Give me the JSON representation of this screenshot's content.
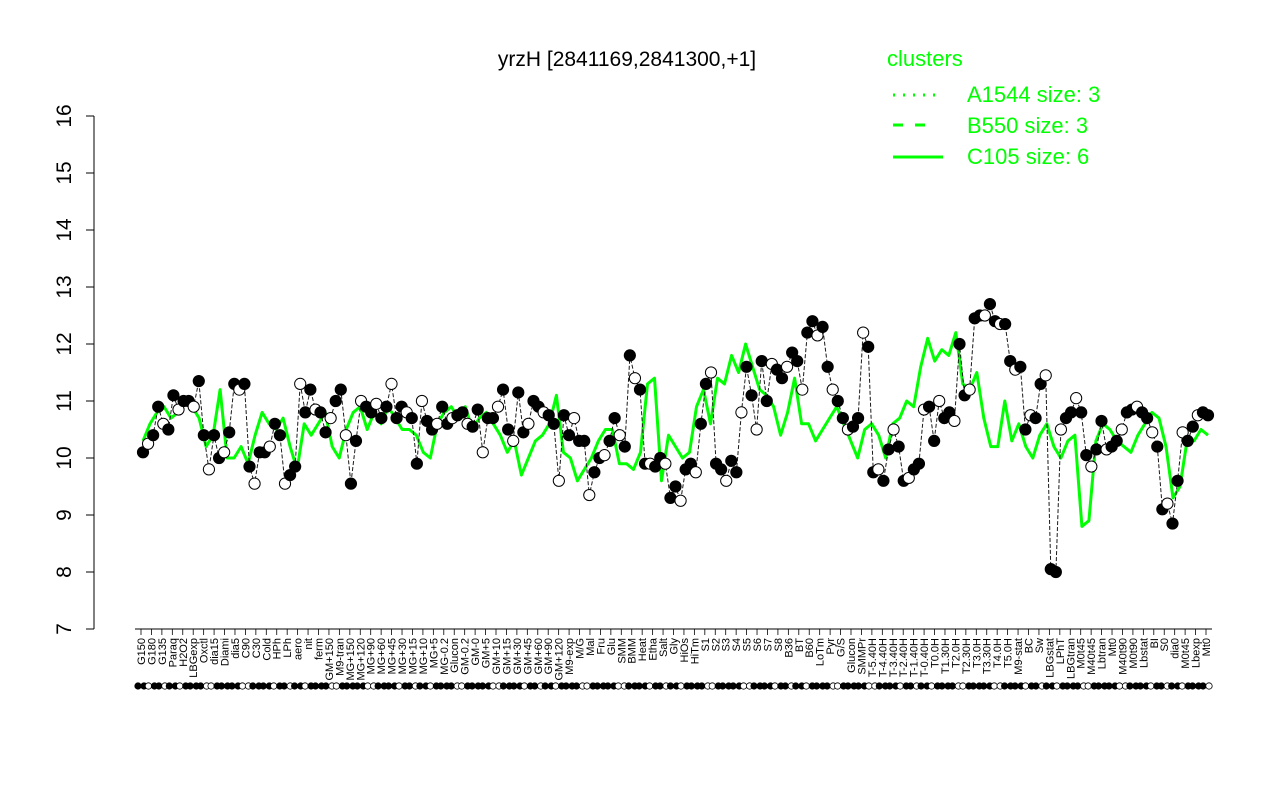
{
  "colors": {
    "cluster": "#00ff00",
    "marker_stroke": "#000000",
    "filled": "#000000",
    "open": "#ffffff",
    "line": "#1a1a1a"
  },
  "legend": {
    "title": "clusters",
    "items": [
      {
        "label": "A1544 size: 3",
        "style": "dotted"
      },
      {
        "label": "B550 size: 3",
        "style": "dashed"
      },
      {
        "label": "C105 size: 6",
        "style": "solid"
      }
    ]
  },
  "chart_data": {
    "type": "line",
    "title": "yrzH [2841169,2841300,+1]",
    "xlabel": "",
    "ylabel": "",
    "ylim": [
      7,
      16
    ],
    "yticks": [
      7,
      8,
      9,
      10,
      11,
      12,
      13,
      14,
      15,
      16
    ],
    "legend_position": "top-right",
    "grid": false,
    "x_labels_top": [
      "G150",
      "G180",
      "G135",
      "Paraq",
      "H2O2",
      "LBGexp",
      "Oxctl",
      "dia15",
      "Diami",
      "dia5",
      "C90",
      "C30",
      "Cold",
      "HPh",
      "LPh",
      "aero",
      "nit",
      "ferm",
      "GM+150",
      "M9-tran",
      "MG+150",
      "MG+120",
      "MG+90",
      "MG+60",
      "MG+45",
      "MG+30",
      "MG+15",
      "MG+10",
      "MG+5",
      "MG-0.2",
      "Glucon",
      "GM-0.2",
      "GM-0",
      "GM+5",
      "GM+10",
      "GM+15",
      "GM+30",
      "GM+45",
      "GM+60",
      "GM+90",
      "GM+120",
      "M9-exp",
      "M/G",
      "Mal",
      "Fru",
      "Glu",
      "SMM",
      "BMM",
      "Heat",
      "Etha",
      "Salt",
      "Gly",
      "HiOs",
      "HiTm",
      "S1",
      "S2",
      "S3",
      "S4",
      "S5",
      "S6",
      "S7",
      "S8",
      "B36",
      "BT",
      "B60",
      "LoTm",
      "Pyr",
      "G/S",
      "Glucon",
      "SMMPr",
      "T-5.40H",
      "T-4.40H",
      "T-3.40H",
      "T-2.40H",
      "T-1.40H",
      "T-0.40H",
      "T0.0H",
      "T1.30H",
      "T2.0H",
      "T2.30H",
      "T3.0H",
      "T3.30H",
      "T4.0H",
      "T5.0H",
      "M9-stat",
      "BC",
      "Sw",
      "LBGstat",
      "LPhT",
      "LBGtran",
      "M0t45",
      "M40t45",
      "Lbtran",
      "Mt0",
      "M40t90",
      "M0t90",
      "Lbstat",
      "BI",
      "S0",
      "dia0",
      "M0t45",
      "Lbexp",
      "Mt0"
    ],
    "series": [
      {
        "values": [
          10.1,
          10.25,
          10.4,
          10.9,
          10.6,
          10.5,
          11.1,
          10.85,
          11.0,
          11.0,
          10.9,
          11.35,
          10.4,
          9.8,
          10.4,
          10.0,
          10.1,
          10.45,
          11.3,
          11.2,
          11.3,
          9.85,
          9.55,
          10.1,
          10.1,
          10.2,
          10.6,
          10.4,
          9.55,
          9.7,
          9.85,
          11.3,
          10.8,
          11.2,
          10.85,
          10.8,
          10.45,
          10.7,
          11.0,
          11.2,
          10.4,
          9.55,
          10.3,
          11.0,
          10.9,
          10.8,
          10.95,
          10.7,
          10.9,
          11.3,
          10.7,
          10.9,
          10.8,
          10.7,
          9.9,
          11.0,
          10.65,
          10.5,
          10.6,
          10.9,
          10.6,
          10.7,
          10.75,
          10.8,
          10.6,
          10.55,
          10.85,
          10.1,
          10.7,
          10.7,
          10.9,
          11.2,
          10.5,
          10.3,
          11.15,
          10.45,
          10.6,
          11.0,
          10.9,
          10.8,
          10.75,
          10.6,
          9.6,
          10.75,
          10.4,
          10.7,
          10.3,
          10.3,
          9.35,
          9.75,
          10.0,
          10.05,
          10.3,
          10.7,
          10.4,
          10.2,
          11.8,
          11.4,
          11.2,
          9.9,
          9.9,
          9.85,
          10.0,
          9.9,
          9.3,
          9.5,
          9.25,
          9.8,
          9.9,
          9.75,
          10.6,
          11.3,
          11.5,
          9.9,
          9.8,
          9.6,
          9.95,
          9.75,
          10.8,
          11.6,
          11.1,
          10.5,
          11.7,
          11.0,
          11.65,
          11.55,
          11.4,
          11.6,
          11.85,
          11.7,
          11.2,
          12.2,
          12.4,
          12.15,
          12.3,
          11.6,
          11.2,
          11.0,
          10.7,
          10.5,
          10.55,
          10.7,
          12.2,
          11.95,
          9.75,
          9.8,
          9.6,
          10.15,
          10.5,
          10.2,
          9.6,
          9.65,
          9.8,
          9.9,
          10.85,
          10.9,
          10.3,
          11.0,
          10.7,
          10.8,
          10.65,
          12.0,
          11.1,
          11.2,
          12.45,
          12.5,
          12.5,
          12.7,
          12.4,
          12.35,
          12.35,
          11.7,
          11.55,
          11.6,
          10.5,
          10.75,
          10.7,
          11.3,
          11.45,
          8.05,
          8.0,
          10.5,
          10.7,
          10.8,
          11.05,
          10.8,
          10.05,
          9.85,
          10.15,
          10.65,
          10.15,
          10.2,
          10.3,
          10.5,
          10.8,
          10.85,
          10.9,
          10.8,
          10.7,
          10.45,
          10.2,
          9.1,
          9.2,
          8.85,
          9.6,
          10.45,
          10.3,
          10.55,
          10.75,
          10.8,
          10.75
        ]
      },
      {
        "name": "C105 size: 6",
        "values": [
          10.3,
          10.6,
          10.8,
          10.9,
          10.7,
          10.8,
          11.0,
          10.9,
          10.7,
          10.2,
          10.4,
          11.2,
          10.0,
          10.0,
          10.2,
          9.9,
          10.4,
          10.8,
          10.6,
          10.5,
          10.7,
          10.2,
          9.8,
          10.6,
          10.4,
          10.6,
          10.8,
          10.2,
          10.0,
          10.5,
          10.8,
          10.9,
          10.5,
          10.8,
          10.6,
          10.9,
          10.7,
          10.5,
          10.5,
          10.4,
          10.1,
          10.0,
          10.6,
          10.8,
          10.9,
          10.7,
          10.9,
          10.5,
          10.7,
          10.8,
          10.6,
          10.4,
          10.1,
          10.3,
          9.7,
          10.0,
          10.3,
          10.4,
          10.6,
          11.1,
          10.1,
          10.0,
          9.6,
          9.8,
          10.0,
          10.3,
          10.5,
          10.5,
          9.9,
          9.9,
          9.8,
          10.1,
          11.3,
          11.4,
          9.6,
          10.4,
          10.2,
          10.0,
          10.1,
          10.9,
          11.2,
          10.6,
          11.4,
          11.3,
          11.8,
          11.5,
          12.0,
          11.6,
          11.2,
          11.1,
          10.9,
          10.4,
          10.8,
          11.4,
          10.6,
          10.6,
          10.3,
          10.5,
          10.7,
          10.9,
          10.6,
          10.3,
          10.0,
          10.5,
          10.6,
          10.4,
          10.0,
          10.6,
          10.7,
          11.0,
          10.9,
          11.6,
          12.1,
          11.7,
          11.9,
          11.8,
          12.2,
          11.3,
          11.2,
          11.5,
          10.7,
          10.2,
          10.2,
          11.0,
          10.3,
          10.6,
          10.2,
          10.0,
          10.4,
          10.6,
          10.2,
          10.0,
          10.3,
          10.4,
          8.8,
          8.9,
          10.3,
          10.6,
          10.5,
          10.3,
          10.2,
          10.1,
          10.4,
          10.6,
          10.8,
          10.7,
          10.2,
          9.3,
          9.5,
          10.3,
          10.3,
          10.5,
          10.4
        ]
      }
    ]
  }
}
